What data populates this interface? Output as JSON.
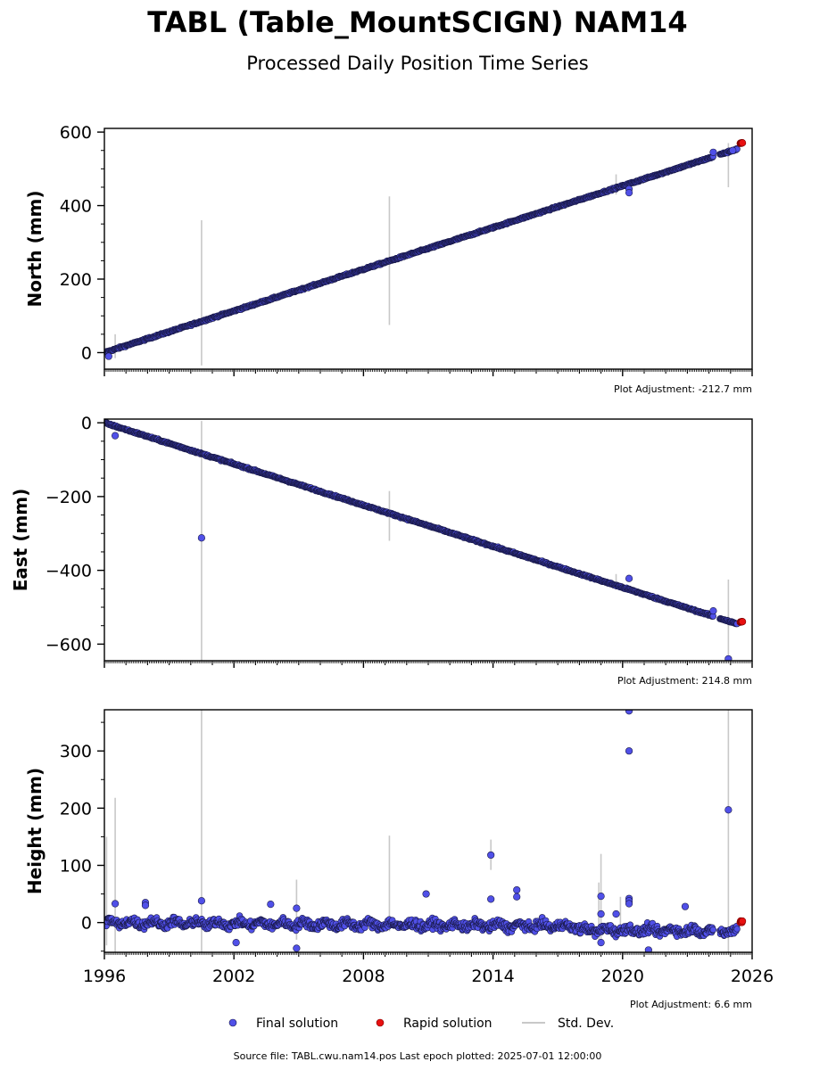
{
  "title": "TABL (Table_MountSCIGN) NAM14",
  "subtitle": "Processed Daily Position Time Series",
  "colors": {
    "final": "#5050e8",
    "final_edge": "#1a1a4a",
    "rapid": "#e81010",
    "std": "#c8c8c8"
  },
  "chart_data": [
    {
      "type": "scatter",
      "panel": "north",
      "ylabel": "North (mm)",
      "xlim": [
        1996,
        2026
      ],
      "ylim": [
        -45,
        610
      ],
      "yticks": [
        0,
        200,
        400,
        600
      ],
      "adjustment": "Plot Adjustment: -212.7 mm",
      "trend": {
        "x0": 1996.0,
        "y0": 0,
        "slope": 18.9
      },
      "gaps": [
        [
          2024.2,
          2024.5
        ]
      ],
      "end": {
        "x": 2025.5,
        "y": 570
      },
      "outliers": [
        {
          "x": 2020.3,
          "y": 445
        },
        {
          "x": 2020.3,
          "y": 435
        },
        {
          "x": 1996.2,
          "y": -10
        },
        {
          "x": 2025.1,
          "y": 550
        },
        {
          "x": 2024.2,
          "y": 545
        }
      ],
      "stddev_bars": [
        {
          "x": 2000.5,
          "lo": -35,
          "hi": 360
        },
        {
          "x": 2009.2,
          "lo": 75,
          "hi": 425
        },
        {
          "x": 2024.9,
          "lo": 450,
          "hi": 570
        },
        {
          "x": 2019.7,
          "lo": 430,
          "hi": 485
        },
        {
          "x": 1996.5,
          "lo": -15,
          "hi": 50
        }
      ]
    },
    {
      "type": "scatter",
      "panel": "east",
      "ylabel": "East (mm)",
      "xlim": [
        1996,
        2026
      ],
      "ylim": [
        -645,
        10
      ],
      "yticks": [
        0,
        -200,
        -400,
        -600
      ],
      "adjustment": "Plot Adjustment: 214.8 mm",
      "trend": {
        "x0": 1996.0,
        "y0": 0,
        "slope": -18.6
      },
      "gaps": [
        [
          2024.2,
          2024.5
        ]
      ],
      "end": {
        "x": 2025.5,
        "y": -540
      },
      "outliers": [
        {
          "x": 2000.5,
          "y": -312
        },
        {
          "x": 1996.5,
          "y": -35
        },
        {
          "x": 2020.3,
          "y": -422
        },
        {
          "x": 2024.9,
          "y": -640
        },
        {
          "x": 2024.2,
          "y": -510
        }
      ],
      "stddev_bars": [
        {
          "x": 2000.5,
          "lo": -645,
          "hi": 5
        },
        {
          "x": 2009.2,
          "lo": -320,
          "hi": -185
        },
        {
          "x": 2024.9,
          "lo": -645,
          "hi": -425
        },
        {
          "x": 2019.7,
          "lo": -450,
          "hi": -410
        }
      ]
    },
    {
      "type": "scatter",
      "panel": "height",
      "ylabel": "Height (mm)",
      "xlim": [
        1996,
        2026
      ],
      "ylim": [
        -52,
        372
      ],
      "yticks": [
        0,
        100,
        200,
        300
      ],
      "adjustment": "Plot Adjustment: 6.6 mm",
      "xticks": [
        "1996",
        "2002",
        "2008",
        "2014",
        "2020",
        "2026"
      ],
      "trend": {
        "x0": 1996.0,
        "y0": 0,
        "slope": -0.3
      },
      "gaps": [
        [
          2024.2,
          2024.5
        ]
      ],
      "end": {
        "x": 2025.5,
        "y": 2
      },
      "outliers": [
        {
          "x": 2020.3,
          "y": 370
        },
        {
          "x": 2020.3,
          "y": 300
        },
        {
          "x": 2024.9,
          "y": 197
        },
        {
          "x": 2013.9,
          "y": 118
        },
        {
          "x": 2010.9,
          "y": 50
        },
        {
          "x": 2015.1,
          "y": 57
        },
        {
          "x": 2015.1,
          "y": 45
        },
        {
          "x": 2013.9,
          "y": 41
        },
        {
          "x": 2000.5,
          "y": 38
        },
        {
          "x": 2019.0,
          "y": 46
        },
        {
          "x": 2020.3,
          "y": 42
        },
        {
          "x": 2020.3,
          "y": 38
        },
        {
          "x": 2020.3,
          "y": 33
        },
        {
          "x": 2003.7,
          "y": 32
        },
        {
          "x": 1997.9,
          "y": 35
        },
        {
          "x": 1997.9,
          "y": 30
        },
        {
          "x": 1996.5,
          "y": 33
        },
        {
          "x": 2004.9,
          "y": 25
        },
        {
          "x": 2022.9,
          "y": 28
        },
        {
          "x": 2019.0,
          "y": 15
        },
        {
          "x": 2019.7,
          "y": 15
        },
        {
          "x": 2004.9,
          "y": -45
        },
        {
          "x": 2021.2,
          "y": -48
        },
        {
          "x": 2002.1,
          "y": -35
        },
        {
          "x": 2019.0,
          "y": -35
        }
      ],
      "stddev_bars": [
        {
          "x": 2000.5,
          "lo": -52,
          "hi": 372
        },
        {
          "x": 1996.5,
          "lo": -52,
          "hi": 218
        },
        {
          "x": 2009.2,
          "lo": -15,
          "hi": 152
        },
        {
          "x": 2013.9,
          "lo": 92,
          "hi": 145
        },
        {
          "x": 2004.9,
          "lo": -30,
          "hi": 75
        },
        {
          "x": 2024.9,
          "lo": -52,
          "hi": 372
        },
        {
          "x": 2019.0,
          "lo": -40,
          "hi": 120
        },
        {
          "x": 2018.9,
          "lo": -30,
          "hi": 70
        },
        {
          "x": 1996.1,
          "lo": -40,
          "hi": 150
        },
        {
          "x": 2019.9,
          "lo": -15,
          "hi": 45
        }
      ]
    }
  ],
  "legend": {
    "final_label": "Final solution",
    "rapid_label": "Rapid solution",
    "std_label": "Std. Dev."
  },
  "footer": "Source file: TABL.cwu.nam14.pos  Last epoch plotted: 2025-07-01 12:00:00"
}
